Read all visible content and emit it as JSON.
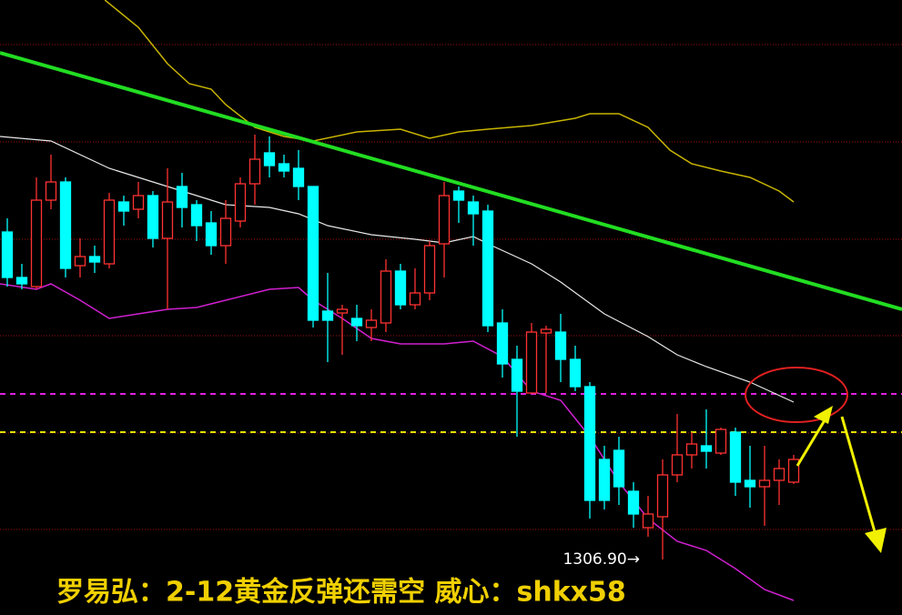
{
  "chart_data": {
    "type": "candlestick",
    "xlim": [
      -0.5,
      61.4375
    ],
    "ylim": [
      1300.8,
      1368.4
    ],
    "up_color": "#ff3232",
    "down_color": "#00ffff",
    "open": [
      1342.9,
      1337.9,
      1336.9,
      1346.4,
      1348.4,
      1339.2,
      1340.2,
      1339.4,
      1346.2,
      1345.4,
      1346.9,
      1342.2,
      1347.9,
      1345.9,
      1343.9,
      1341.4,
      1344.1,
      1348.2,
      1351.6,
      1350.4,
      1349.9,
      1347.9,
      1334.2,
      1334.0,
      1333.4,
      1332.4,
      1332.9,
      1338.6,
      1334.9,
      1336.2,
      1341.6,
      1347.4,
      1346.2,
      1345.2,
      1332.9,
      1328.9,
      1325.2,
      1331.8,
      1331.9,
      1328.9,
      1325.9,
      1317.9,
      1318.9,
      1314.4,
      1310.4,
      1311.6,
      1316.2,
      1318.4,
      1319.4,
      1318.6,
      1320.9,
      1315.6,
      1314.9,
      1315.6,
      1315.4
    ],
    "high": [
      1344.4,
      1339.4,
      1348.9,
      1351.4,
      1348.9,
      1342.2,
      1341.4,
      1347.2,
      1346.9,
      1348.4,
      1347.4,
      1349.9,
      1349.4,
      1346.4,
      1345.2,
      1346.4,
      1348.9,
      1353.6,
      1353.4,
      1351.4,
      1351.9,
      1347.9,
      1338.4,
      1334.9,
      1334.9,
      1334.4,
      1339.9,
      1339.4,
      1338.9,
      1341.9,
      1348.4,
      1347.9,
      1346.9,
      1345.9,
      1334.4,
      1330.4,
      1332.9,
      1332.6,
      1333.9,
      1330.4,
      1326.4,
      1319.4,
      1320.4,
      1315.4,
      1313.9,
      1317.9,
      1322.9,
      1320.9,
      1323.4,
      1321.4,
      1321.4,
      1319.4,
      1319.4,
      1317.9,
      1318.4
    ],
    "low": [
      1336.9,
      1336.6,
      1336.6,
      1345.4,
      1337.9,
      1337.9,
      1338.4,
      1338.9,
      1343.6,
      1344.4,
      1341.2,
      1334.4,
      1343.4,
      1341.9,
      1340.4,
      1339.4,
      1343.4,
      1345.9,
      1348.9,
      1348.9,
      1346.4,
      1332.4,
      1328.6,
      1329.4,
      1330.9,
      1330.9,
      1331.9,
      1334.4,
      1334.4,
      1335.4,
      1337.9,
      1343.9,
      1341.4,
      1331.9,
      1326.9,
      1320.4,
      1325.2,
      1325.2,
      1326.4,
      1325.4,
      1311.4,
      1312.4,
      1312.9,
      1310.4,
      1309.4,
      1306.9,
      1315.4,
      1316.9,
      1316.9,
      1318.4,
      1313.9,
      1312.6,
      1310.6,
      1312.9,
      1315.2
    ],
    "close": [
      1337.9,
      1337.2,
      1346.4,
      1348.4,
      1338.9,
      1340.2,
      1339.6,
      1346.4,
      1345.2,
      1346.9,
      1342.2,
      1346.2,
      1345.6,
      1343.6,
      1341.4,
      1344.4,
      1348.2,
      1350.9,
      1350.2,
      1349.6,
      1347.9,
      1333.2,
      1333.2,
      1334.4,
      1332.6,
      1333.2,
      1338.6,
      1334.9,
      1336.2,
      1341.4,
      1346.9,
      1346.4,
      1344.9,
      1332.6,
      1328.4,
      1325.4,
      1331.9,
      1332.2,
      1328.9,
      1325.9,
      1313.4,
      1313.4,
      1314.9,
      1311.9,
      1311.9,
      1316.2,
      1318.4,
      1319.6,
      1318.8,
      1321.2,
      1315.4,
      1314.9,
      1315.6,
      1316.9,
      1317.9
    ],
    "lines": [
      {
        "color": "#e8e8e8",
        "width": 1.2,
        "x": [
          -0.5,
          3,
          7,
          11,
          15,
          18,
          20,
          22,
          25,
          28,
          30,
          32,
          33,
          36,
          38,
          41,
          44,
          46,
          48,
          51,
          54
        ],
        "values": [
          1353.4,
          1352.9,
          1349.9,
          1347.9,
          1345.9,
          1345.6,
          1344.9,
          1343.6,
          1342.6,
          1342.1,
          1341.7,
          1342.4,
          1341.6,
          1339.4,
          1337.4,
          1333.9,
          1331.4,
          1329.4,
          1328.1,
          1326.4,
          1324.2
        ]
      },
      {
        "color": "#d020d0",
        "width": 1.5,
        "x": [
          -0.5,
          2,
          3,
          5,
          7,
          9,
          11,
          13,
          15,
          18,
          20,
          21,
          23,
          25,
          27,
          30,
          32,
          34,
          36,
          38,
          40,
          42,
          44,
          46,
          48,
          50,
          52,
          54
        ],
        "values": [
          1337.2,
          1336.6,
          1337.2,
          1335.4,
          1333.4,
          1333.9,
          1334.4,
          1334.6,
          1335.4,
          1336.6,
          1336.8,
          1335.4,
          1333.4,
          1331.2,
          1330.6,
          1330.6,
          1330.9,
          1329.2,
          1325.4,
          1324.4,
          1320.4,
          1315.4,
          1311.4,
          1308.9,
          1307.9,
          1305.9,
          1303.6,
          1302.4
        ]
      },
      {
        "color": "#c8b400",
        "width": 1.5,
        "x": [
          6.7,
          9,
          11,
          12.5,
          14,
          15,
          17,
          19,
          21,
          24,
          27,
          29,
          31,
          33,
          36,
          39,
          40,
          42,
          44,
          45.5,
          47,
          49,
          51,
          53,
          54
        ],
        "values": [
          1368.4,
          1365.4,
          1361.4,
          1359.2,
          1358.6,
          1356.9,
          1354.4,
          1353.4,
          1352.9,
          1353.9,
          1354.2,
          1353.2,
          1353.9,
          1354.2,
          1354.6,
          1355.4,
          1355.9,
          1355.9,
          1354.4,
          1351.9,
          1350.4,
          1349.6,
          1348.9,
          1347.4,
          1346.2
        ]
      },
      {
        "color": "#22dd22",
        "width": 4,
        "x": [
          -0.5,
          61.4375
        ],
        "values": [
          1362.6,
          1334.4
        ]
      }
    ],
    "grid_levels": [
      1363.5,
      1352.8,
      1342.1,
      1331.5,
      1320.8,
      1310.2
    ],
    "grid_color": "#a01010",
    "dashed_levels": [
      {
        "value": 1325.1,
        "color": "#e020e0"
      },
      {
        "value": 1320.9,
        "color": "#e0e000"
      }
    ],
    "annotation": "1306.90→"
  },
  "caption": "罗易弘：2-12黄金反弹还需空 威心：shkx58"
}
